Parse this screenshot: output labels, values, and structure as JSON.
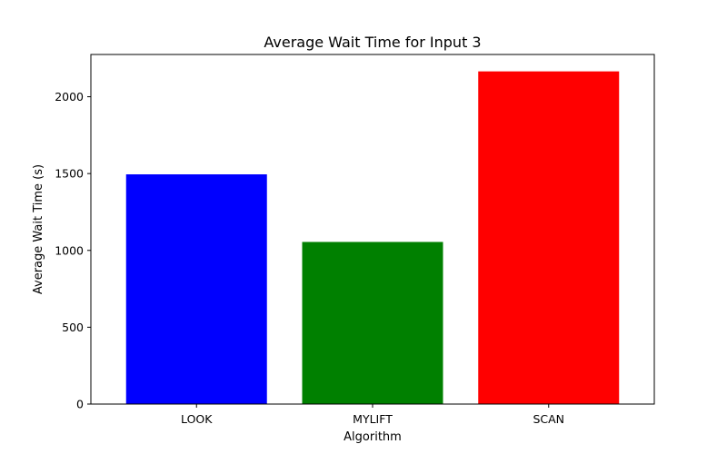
{
  "chart_data": {
    "type": "bar",
    "title": "Average Wait Time for Input 3",
    "xlabel": "Algorithm",
    "ylabel": "Average Wait Time (s)",
    "categories": [
      "LOOK",
      "MYLIFT",
      "SCAN"
    ],
    "values": [
      1495,
      1055,
      2165
    ],
    "colors": [
      "#0000ff",
      "#008000",
      "#ff0000"
    ],
    "ylim": [
      0,
      2275
    ],
    "yticks": [
      0,
      500,
      1000,
      1500,
      2000
    ],
    "grid": false,
    "legend": "none"
  }
}
